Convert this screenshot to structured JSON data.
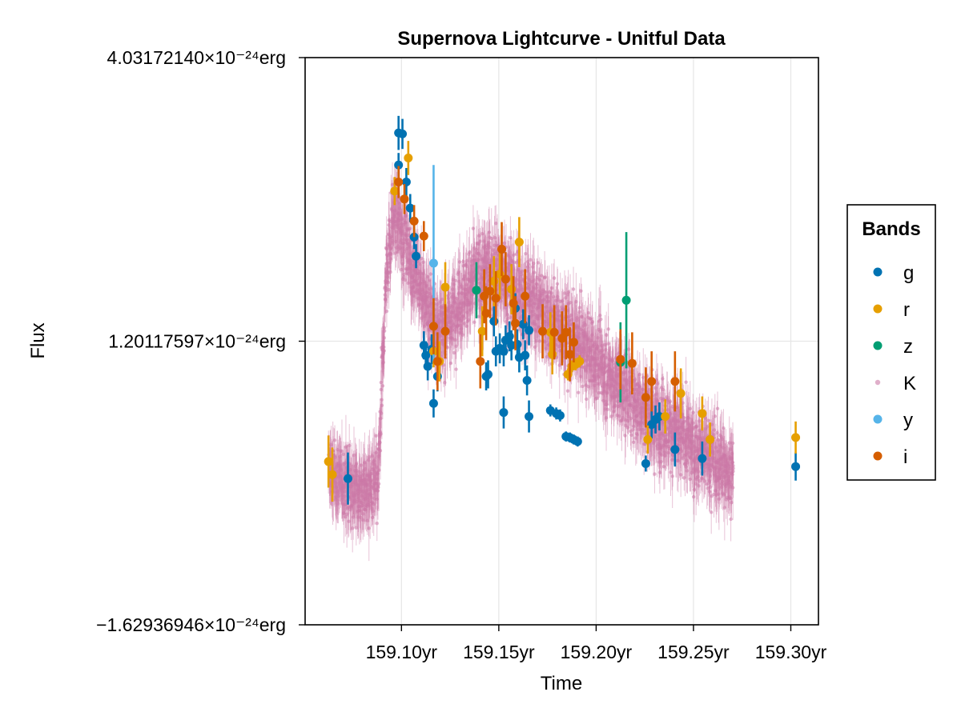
{
  "chart_data": {
    "type": "scatter",
    "title": "Supernova Lightcurve - Unitful Data",
    "xlabel": "Time",
    "ylabel": "Flux",
    "x_unit": "yr",
    "y_unit": "erg",
    "xlim": [
      159.0505,
      159.3142
    ],
    "ylim": [
      -1.62936946,
      4.0317214
    ],
    "y_scale_note": "×10⁻²⁴",
    "x_ticks": [
      {
        "value": 159.1,
        "label": "159.10yr"
      },
      {
        "value": 159.15,
        "label": "159.15yr"
      },
      {
        "value": 159.2,
        "label": "159.20yr"
      },
      {
        "value": 159.25,
        "label": "159.25yr"
      },
      {
        "value": 159.3,
        "label": "159.30yr"
      }
    ],
    "y_ticks": [
      {
        "value": -1.62936946,
        "label": "−1.62936946×10⁻²⁴erg"
      },
      {
        "value": 1.20117597,
        "label": "1.20117597×10⁻²⁴erg"
      },
      {
        "value": 4.0317214,
        "label": "4.03172140×10⁻²⁴erg"
      }
    ],
    "grid": true,
    "legend": {
      "title": "Bands",
      "position": "right",
      "entries": [
        {
          "label": "g",
          "color": "#0072b2"
        },
        {
          "label": "r",
          "color": "#e69f00"
        },
        {
          "label": "z",
          "color": "#009e73"
        },
        {
          "label": "K",
          "color": "#cc79a7"
        },
        {
          "label": "y",
          "color": "#56b4e9"
        },
        {
          "label": "i",
          "color": "#d55e00"
        }
      ]
    },
    "K_envelope": {
      "color": "#cc79a7",
      "x": [
        159.0625,
        159.07,
        159.08,
        159.088,
        159.092,
        159.096,
        159.1,
        159.105,
        159.11,
        159.115,
        159.12,
        159.125,
        159.13,
        159.135,
        159.14,
        159.145,
        159.15,
        159.155,
        159.16,
        159.17,
        159.18,
        159.19,
        159.2,
        159.21,
        159.22,
        159.23,
        159.24,
        159.25,
        159.26,
        159.2705
      ],
      "center": [
        -0.1,
        -0.2,
        -0.3,
        -0.25,
        1.8,
        2.5,
        2.3,
        2.0,
        1.7,
        1.5,
        1.3,
        1.4,
        1.6,
        1.75,
        1.85,
        1.95,
        1.9,
        1.8,
        1.7,
        1.55,
        1.35,
        1.2,
        1.0,
        0.8,
        0.6,
        0.45,
        0.3,
        0.15,
        0.0,
        -0.1
      ],
      "spread": [
        0.45,
        0.5,
        0.55,
        0.55,
        0.55,
        0.5,
        0.55,
        0.55,
        0.55,
        0.55,
        0.55,
        0.55,
        0.6,
        0.6,
        0.6,
        0.6,
        0.6,
        0.6,
        0.6,
        0.6,
        0.6,
        0.6,
        0.6,
        0.6,
        0.6,
        0.6,
        0.6,
        0.6,
        0.6,
        0.55
      ]
    },
    "series": [
      {
        "name": "g",
        "color": "#0072b2",
        "points": [
          {
            "x": 159.0725,
            "y": -0.17,
            "err": 0.26
          },
          {
            "x": 159.0985,
            "y": 3.28,
            "err": 0.17
          },
          {
            "x": 159.1005,
            "y": 3.27,
            "err": 0.15
          },
          {
            "x": 159.0985,
            "y": 2.96,
            "err": 0.12
          },
          {
            "x": 159.1025,
            "y": 2.79,
            "err": 0.14
          },
          {
            "x": 159.1045,
            "y": 2.53,
            "err": 0.14
          },
          {
            "x": 159.1065,
            "y": 2.24,
            "err": 0.12
          },
          {
            "x": 159.1075,
            "y": 2.05,
            "err": 0.12
          },
          {
            "x": 159.1115,
            "y": 1.16,
            "err": 0.14
          },
          {
            "x": 159.1125,
            "y": 1.06,
            "err": 0.14
          },
          {
            "x": 159.1135,
            "y": 0.95,
            "err": 0.14
          },
          {
            "x": 159.1155,
            "y": 1.12,
            "err": 0.15
          },
          {
            "x": 159.1165,
            "y": 0.58,
            "err": 0.14
          },
          {
            "x": 159.1185,
            "y": 0.85,
            "err": 0.15
          },
          {
            "x": 159.1435,
            "y": 0.85,
            "err": 0.14
          },
          {
            "x": 159.1445,
            "y": 0.87,
            "err": 0.14
          },
          {
            "x": 159.1475,
            "y": 1.4,
            "err": 0.15
          },
          {
            "x": 159.1485,
            "y": 1.1,
            "err": 0.15
          },
          {
            "x": 159.1505,
            "y": 1.13,
            "err": 0.15
          },
          {
            "x": 159.1525,
            "y": 1.1,
            "err": 0.15
          },
          {
            "x": 159.1525,
            "y": 0.49,
            "err": 0.16
          },
          {
            "x": 159.1535,
            "y": 1.21,
            "err": 0.15
          },
          {
            "x": 159.1555,
            "y": 1.25,
            "err": 0.15
          },
          {
            "x": 159.1565,
            "y": 1.16,
            "err": 0.15
          },
          {
            "x": 159.1585,
            "y": 1.53,
            "err": 0.15
          },
          {
            "x": 159.1595,
            "y": 1.17,
            "err": 0.15
          },
          {
            "x": 159.1605,
            "y": 1.04,
            "err": 0.15
          },
          {
            "x": 159.1625,
            "y": 1.37,
            "err": 0.15
          },
          {
            "x": 159.1635,
            "y": 1.06,
            "err": 0.15
          },
          {
            "x": 159.1645,
            "y": 0.81,
            "err": 0.15
          },
          {
            "x": 159.1655,
            "y": 1.31,
            "err": 0.15
          },
          {
            "x": 159.1655,
            "y": 0.45,
            "err": 0.16
          },
          {
            "x": 159.1765,
            "y": 0.51,
            "err": 0.06
          },
          {
            "x": 159.1795,
            "y": 0.48,
            "err": 0.06
          },
          {
            "x": 159.1815,
            "y": 0.46,
            "err": 0.06
          },
          {
            "x": 159.1845,
            "y": 0.25,
            "err": 0.05
          },
          {
            "x": 159.1865,
            "y": 0.24,
            "err": 0.05
          },
          {
            "x": 159.1885,
            "y": 0.22,
            "err": 0.05
          },
          {
            "x": 159.1905,
            "y": 0.2,
            "err": 0.05
          },
          {
            "x": 159.2255,
            "y": -0.02,
            "err": 0.08
          },
          {
            "x": 159.2285,
            "y": 0.37,
            "err": 0.14
          },
          {
            "x": 159.2305,
            "y": 0.42,
            "err": 0.14
          },
          {
            "x": 159.2325,
            "y": 0.45,
            "err": 0.14
          },
          {
            "x": 159.2405,
            "y": 0.12,
            "err": 0.17
          },
          {
            "x": 159.2545,
            "y": 0.03,
            "err": 0.17
          },
          {
            "x": 159.3025,
            "y": -0.05,
            "err": 0.14
          }
        ]
      },
      {
        "name": "r",
        "color": "#e69f00",
        "points": [
          {
            "x": 159.0625,
            "y": 0.0,
            "err": 0.26
          },
          {
            "x": 159.0645,
            "y": -0.13,
            "err": 0.27
          },
          {
            "x": 159.0965,
            "y": 2.7,
            "err": 0.14
          },
          {
            "x": 159.1035,
            "y": 3.03,
            "err": 0.17
          },
          {
            "x": 159.1165,
            "y": 1.1,
            "err": 0.16
          },
          {
            "x": 159.1195,
            "y": 1.0,
            "err": 0.2
          },
          {
            "x": 159.1225,
            "y": 1.74,
            "err": 0.25
          },
          {
            "x": 159.1415,
            "y": 1.3,
            "err": 0.25
          },
          {
            "x": 159.1475,
            "y": 1.8,
            "err": 0.25
          },
          {
            "x": 159.1505,
            "y": 1.87,
            "err": 0.25
          },
          {
            "x": 159.1565,
            "y": 1.72,
            "err": 0.25
          },
          {
            "x": 159.1605,
            "y": 2.19,
            "err": 0.25
          },
          {
            "x": 159.1765,
            "y": 1.29,
            "err": 0.2
          },
          {
            "x": 159.1775,
            "y": 1.07,
            "err": 0.2
          },
          {
            "x": 159.1855,
            "y": 0.87,
            "err": 0.06
          },
          {
            "x": 159.1875,
            "y": 0.95,
            "err": 0.06
          },
          {
            "x": 159.1895,
            "y": 0.97,
            "err": 0.06
          },
          {
            "x": 159.1915,
            "y": 1.0,
            "err": 0.06
          },
          {
            "x": 159.2265,
            "y": 0.22,
            "err": 0.14
          },
          {
            "x": 159.2355,
            "y": 0.45,
            "err": 0.17
          },
          {
            "x": 159.2435,
            "y": 0.68,
            "err": 0.25
          },
          {
            "x": 159.2545,
            "y": 0.48,
            "err": 0.17
          },
          {
            "x": 159.2585,
            "y": 0.22,
            "err": 0.17
          },
          {
            "x": 159.3025,
            "y": 0.24,
            "err": 0.16
          }
        ]
      },
      {
        "name": "z",
        "color": "#009e73",
        "points": [
          {
            "x": 159.1385,
            "y": 1.71,
            "err": 0.28
          },
          {
            "x": 159.2125,
            "y": 0.99,
            "err": 0.4
          },
          {
            "x": 159.2155,
            "y": 1.61,
            "err": 0.68
          }
        ]
      },
      {
        "name": "y",
        "color": "#56b4e9",
        "points": [
          {
            "x": 159.1165,
            "y": 1.98,
            "err": 0.98
          }
        ]
      },
      {
        "name": "i",
        "color": "#d55e00",
        "points": [
          {
            "x": 159.0985,
            "y": 2.79,
            "err": 0.16
          },
          {
            "x": 159.1015,
            "y": 2.62,
            "err": 0.15
          },
          {
            "x": 159.1065,
            "y": 2.4,
            "err": 0.16
          },
          {
            "x": 159.1115,
            "y": 2.25,
            "err": 0.15
          },
          {
            "x": 159.1165,
            "y": 1.35,
            "err": 0.28
          },
          {
            "x": 159.1185,
            "y": 1.0,
            "err": 0.29
          },
          {
            "x": 159.1225,
            "y": 1.3,
            "err": 0.27
          },
          {
            "x": 159.1405,
            "y": 1.0,
            "err": 0.27
          },
          {
            "x": 159.1425,
            "y": 1.65,
            "err": 0.27
          },
          {
            "x": 159.1435,
            "y": 1.48,
            "err": 0.27
          },
          {
            "x": 159.1455,
            "y": 1.7,
            "err": 0.27
          },
          {
            "x": 159.1485,
            "y": 1.63,
            "err": 0.27
          },
          {
            "x": 159.1515,
            "y": 2.12,
            "err": 0.27
          },
          {
            "x": 159.1535,
            "y": 1.82,
            "err": 0.27
          },
          {
            "x": 159.1575,
            "y": 1.58,
            "err": 0.27
          },
          {
            "x": 159.1585,
            "y": 1.38,
            "err": 0.27
          },
          {
            "x": 159.1635,
            "y": 1.65,
            "err": 0.27
          },
          {
            "x": 159.1725,
            "y": 1.3,
            "err": 0.27
          },
          {
            "x": 159.1785,
            "y": 1.29,
            "err": 0.27
          },
          {
            "x": 159.1825,
            "y": 1.23,
            "err": 0.27
          },
          {
            "x": 159.1845,
            "y": 1.29,
            "err": 0.27
          },
          {
            "x": 159.1865,
            "y": 1.07,
            "err": 0.27
          },
          {
            "x": 159.1885,
            "y": 1.19,
            "err": 0.2
          },
          {
            "x": 159.2125,
            "y": 1.02,
            "err": 0.3
          },
          {
            "x": 159.2185,
            "y": 0.98,
            "err": 0.31
          },
          {
            "x": 159.2255,
            "y": 0.64,
            "err": 0.3
          },
          {
            "x": 159.2285,
            "y": 0.8,
            "err": 0.3
          },
          {
            "x": 159.2405,
            "y": 0.8,
            "err": 0.3
          }
        ]
      }
    ]
  }
}
